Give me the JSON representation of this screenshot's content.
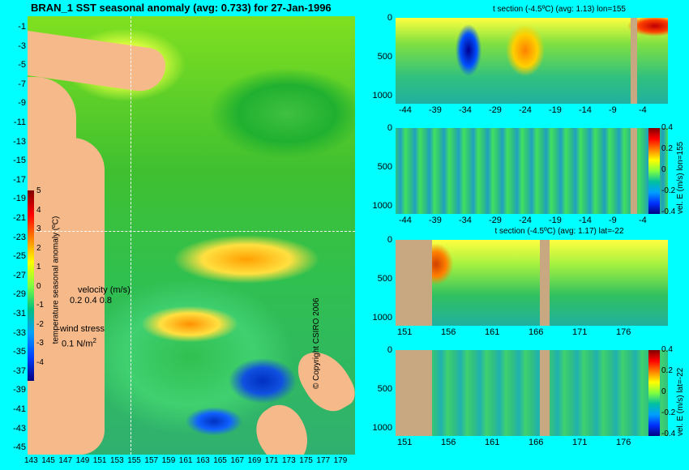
{
  "main_title": "BRAN_1 SST seasonal anomaly (avg: 0.733) for 27-Jan-1996",
  "map": {
    "y_ticks": [
      "-1",
      "-3",
      "-5",
      "-7",
      "-9",
      "-11",
      "-13",
      "-15",
      "-17",
      "-19",
      "-21",
      "-23",
      "-25",
      "-27",
      "-29",
      "-31",
      "-33",
      "-35",
      "-37",
      "-39",
      "-41",
      "-43",
      "-45"
    ],
    "x_ticks": [
      "143",
      "145",
      "147",
      "149",
      "151",
      "153",
      "155",
      "157",
      "159",
      "161",
      "163",
      "165",
      "167",
      "169",
      "171",
      "173",
      "175",
      "177",
      "179"
    ],
    "colorbar_ticks": [
      "5",
      "4",
      "3",
      "2",
      "1",
      "0",
      "-1",
      "-2",
      "-3",
      "-4"
    ],
    "colorbar_label": "temperature seasonal anomaly (ºC)",
    "velocity_label": "velocity (m/s)",
    "velocity_scale": "0.2 0.4 0.8",
    "wind_label": "wind stress",
    "wind_scale": "0.1 N/m",
    "wind_scale_sup": "2",
    "copyright": "© Copyright CSIRO 2006"
  },
  "panels": [
    {
      "title": "t section (-4.5ºC) (avg: 1.13) lon=155",
      "y_ticks": [
        "0",
        "500",
        "1000"
      ],
      "x_ticks": [
        "-44",
        "-39",
        "-34",
        "-29",
        "-24",
        "-19",
        "-14",
        "-9",
        "-4"
      ],
      "side_label": ""
    },
    {
      "title": "",
      "y_ticks": [
        "0",
        "500",
        "1000"
      ],
      "x_ticks": [
        "-44",
        "-39",
        "-34",
        "-29",
        "-24",
        "-19",
        "-14",
        "-9",
        "-4"
      ],
      "side_label": "vel. E (m/s) lon=155",
      "bar_ticks": [
        "0.4",
        "0.2",
        "0",
        "-0.2",
        "-0.4"
      ]
    },
    {
      "title": "t section (-4.5ºC) (avg: 1.17) lat=-22",
      "y_ticks": [
        "0",
        "500",
        "1000"
      ],
      "x_ticks": [
        "151",
        "156",
        "161",
        "166",
        "171",
        "176"
      ],
      "side_label": ""
    },
    {
      "title": "",
      "y_ticks": [
        "0",
        "500",
        "1000"
      ],
      "x_ticks": [
        "151",
        "156",
        "161",
        "166",
        "171",
        "176"
      ],
      "side_label": "vel. E (m/s) lat=-22",
      "bar_ticks": [
        "0.4",
        "0.2",
        "0",
        "-0.2",
        "-0.4"
      ]
    }
  ],
  "chart_data": [
    {
      "type": "heatmap",
      "title": "BRAN_1 SST seasonal anomaly (avg: 0.733) for 27-Jan-1996",
      "xlim": [
        143,
        180
      ],
      "ylim": [
        -45,
        0
      ],
      "colorbar_range": [
        -4,
        5
      ],
      "colorbar_label": "temperature seasonal anomaly (ºC)"
    },
    {
      "type": "heatmap",
      "title": "t section (-4.5ºC) (avg: 1.13) lon=155",
      "xlim": [
        -46,
        -1
      ],
      "ylim": [
        1100,
        0
      ]
    },
    {
      "type": "heatmap",
      "xlim": [
        -46,
        -1
      ],
      "ylim": [
        1100,
        0
      ],
      "colorbar_range": [
        -0.4,
        0.4
      ],
      "colorbar_label": "vel. E (m/s) lon=155"
    },
    {
      "type": "heatmap",
      "title": "t section (-4.5ºC) (avg: 1.17) lat=-22",
      "xlim": [
        150,
        180
      ],
      "ylim": [
        1100,
        0
      ]
    },
    {
      "type": "heatmap",
      "xlim": [
        150,
        180
      ],
      "ylim": [
        1100,
        0
      ],
      "colorbar_range": [
        -0.4,
        0.4
      ],
      "colorbar_label": "vel. E (m/s) lat=-22"
    }
  ]
}
